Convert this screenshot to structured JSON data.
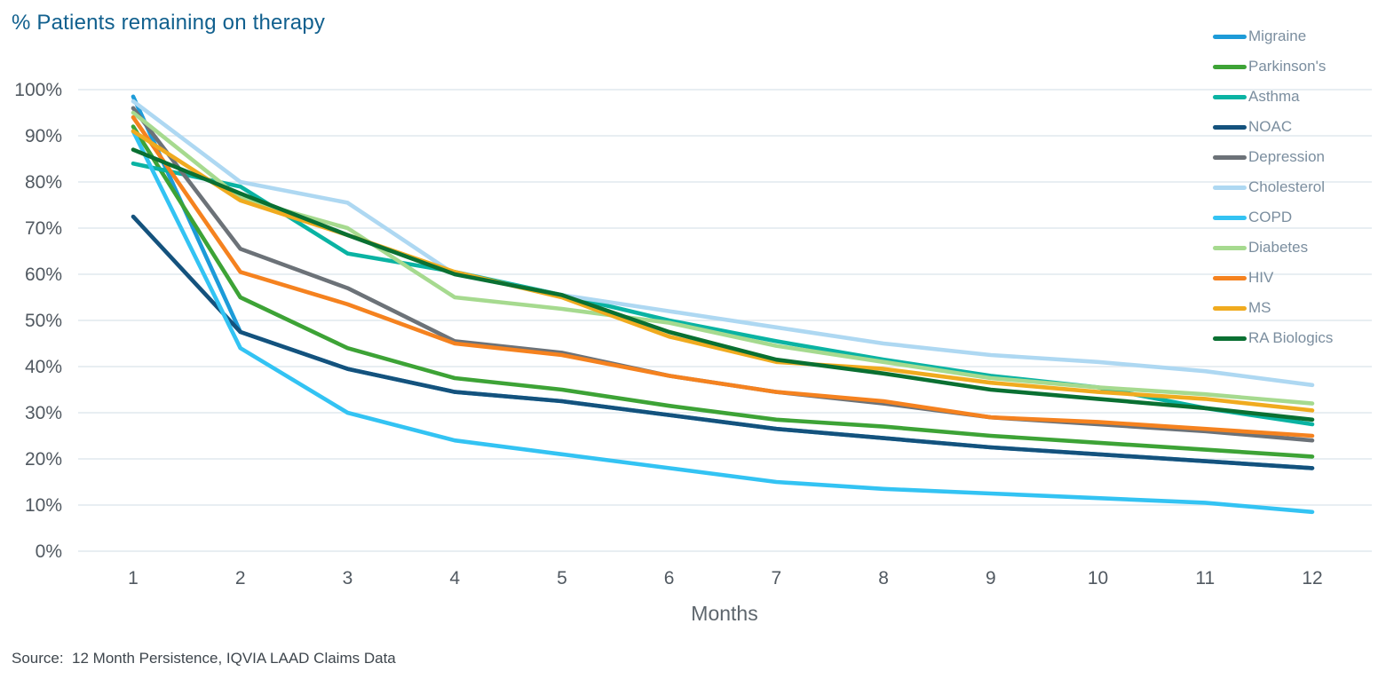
{
  "title": "% Patients remaining on therapy",
  "source": "Source:  12 Month Persistence, IQVIA LAAD Claims Data",
  "y_axis": {
    "min": 0,
    "max": 100,
    "step": 10,
    "suffix": "%"
  },
  "chart_data": {
    "type": "line",
    "title": "% Patients remaining on therapy",
    "xlabel": "Months",
    "ylabel": "% Patients remaining on therapy",
    "x": [
      1,
      2,
      3,
      4,
      5,
      6,
      7,
      8,
      9,
      10,
      11,
      12
    ],
    "ylim": [
      0,
      100
    ],
    "y_tick_suffix": "%",
    "grid": true,
    "legend_position": "right",
    "series": [
      {
        "name": "Migraine",
        "color": "#1d9bd8",
        "values": [
          98.5,
          47.5,
          39.5,
          34.5,
          32.5,
          29.5,
          26.5,
          24.5,
          22.5,
          21,
          19.5,
          18
        ]
      },
      {
        "name": "Parkinson's",
        "color": "#3da336",
        "values": [
          92,
          55,
          44,
          37.5,
          35,
          31.5,
          28.5,
          27,
          25,
          23.5,
          22,
          20.5
        ]
      },
      {
        "name": "Asthma",
        "color": "#0ab3a3",
        "values": [
          84,
          79,
          64.5,
          60.5,
          55.5,
          50,
          45.5,
          41.5,
          38,
          35.5,
          31,
          27.5
        ]
      },
      {
        "name": "NOAC",
        "color": "#14527d",
        "values": [
          72.5,
          47.5,
          39.5,
          34.5,
          32.5,
          29.5,
          26.5,
          24.5,
          22.5,
          21,
          19.5,
          18
        ]
      },
      {
        "name": "Depression",
        "color": "#6c7278",
        "values": [
          96,
          65.5,
          57,
          45.5,
          43,
          38,
          34.5,
          32,
          29,
          27.5,
          26,
          24
        ]
      },
      {
        "name": "Cholesterol",
        "color": "#aed8f2",
        "values": [
          97.5,
          80,
          75.5,
          60,
          55.5,
          52,
          48.5,
          45,
          42.5,
          41,
          39,
          36
        ]
      },
      {
        "name": "COPD",
        "color": "#33c3f3",
        "values": [
          91,
          44,
          30,
          24,
          21,
          18,
          15,
          13.5,
          12.5,
          11.5,
          10.5,
          8.5
        ]
      },
      {
        "name": "Diabetes",
        "color": "#a6da8f",
        "values": [
          95,
          76.5,
          70,
          55,
          52.5,
          49.5,
          44.5,
          41,
          37.5,
          35.5,
          34,
          32
        ]
      },
      {
        "name": "HIV",
        "color": "#f5821f",
        "values": [
          94,
          60.5,
          53.5,
          45,
          42.5,
          38,
          34.5,
          32.5,
          29,
          28,
          26.5,
          25
        ]
      },
      {
        "name": "MS",
        "color": "#f0ab1f",
        "values": [
          91,
          76,
          68.5,
          60.5,
          55,
          46.5,
          41,
          39.5,
          36.5,
          34.5,
          33,
          30.5
        ]
      },
      {
        "name": "RA Biologics",
        "color": "#0a7032",
        "values": [
          87,
          77.5,
          68.5,
          60,
          55.5,
          47.5,
          41.5,
          38.5,
          35,
          33,
          31,
          28.5
        ]
      }
    ]
  }
}
